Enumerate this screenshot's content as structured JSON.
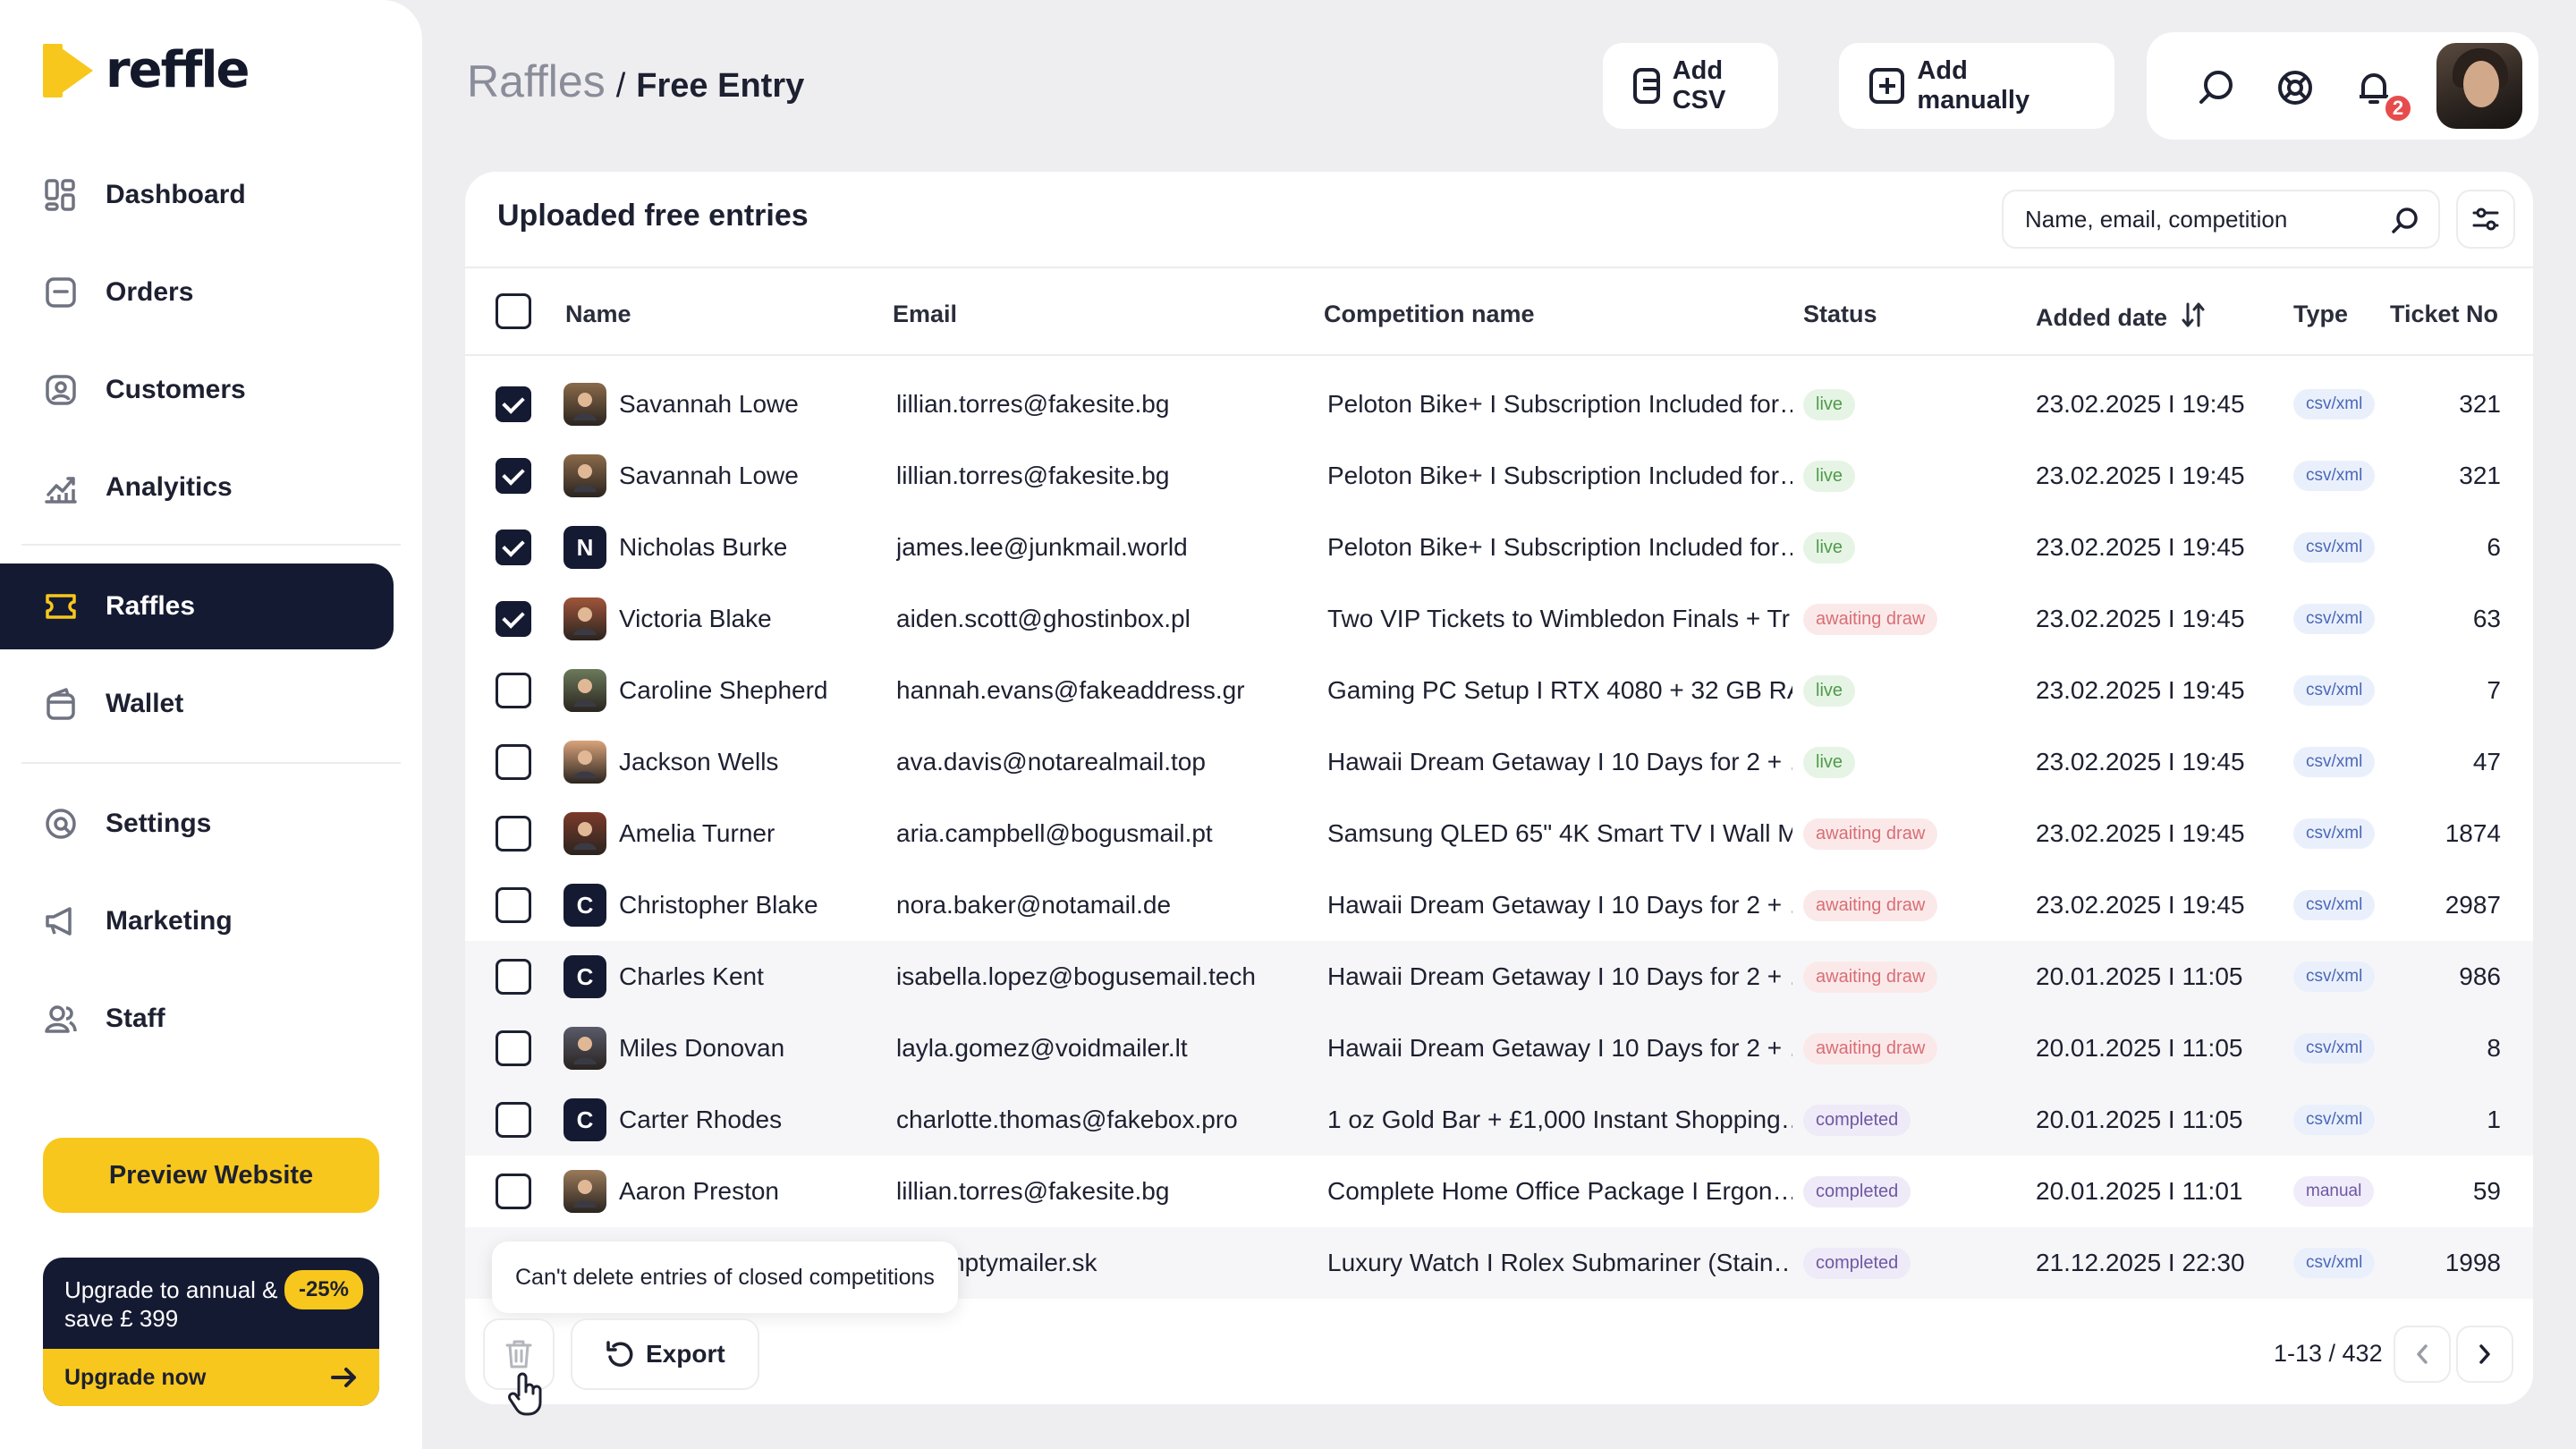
{
  "app": {
    "logo_text": "reffle",
    "brand_color": "#f7c71d",
    "nav_dark": "#151a33"
  },
  "sidebar": {
    "items": [
      {
        "label": "Dashboard",
        "icon": "dashboard-icon"
      },
      {
        "label": "Orders",
        "icon": "orders-icon"
      },
      {
        "label": "Customers",
        "icon": "customers-icon"
      },
      {
        "label": "Analyitics",
        "icon": "analytics-icon"
      },
      {
        "label": "Raffles",
        "icon": "raffles-icon",
        "active": true
      },
      {
        "label": "Wallet",
        "icon": "wallet-icon"
      },
      {
        "label": "Settings",
        "icon": "settings-icon"
      },
      {
        "label": "Marketing",
        "icon": "megaphone-icon"
      },
      {
        "label": "Staff",
        "icon": "staff-icon"
      }
    ],
    "preview_label": "Preview Website",
    "upgrade": {
      "text": "Upgrade to annual & save £ 399",
      "badge": "-25%",
      "cta": "Upgrade now"
    }
  },
  "header": {
    "breadcrumb_root": "Raffles",
    "breadcrumb_sep": "/",
    "breadcrumb_page": "Free Entry",
    "add_csv_label": "Add CSV",
    "add_manual_label": "Add manually",
    "notification_count": "2"
  },
  "card": {
    "title": "Uploaded free entries",
    "search_placeholder": "Name, email, competition",
    "columns": [
      "Name",
      "Email",
      "Competition name",
      "Status",
      "Added date",
      "Type",
      "Ticket No"
    ],
    "rows": [
      {
        "checked": true,
        "name": "Savannah Lowe",
        "avatar": "photo",
        "avatar_color": "#8a6a4a",
        "email": "lillian.torres@fakesite.bg",
        "competition": "Peloton Bike+ I Subscription Included for…",
        "status": "live",
        "date": "23.02.2025 I 19:45",
        "type": "csv/xml",
        "ticket": "321"
      },
      {
        "checked": true,
        "name": "Savannah Lowe",
        "avatar": "photo",
        "avatar_color": "#8a6a4a",
        "email": "lillian.torres@fakesite.bg",
        "competition": "Peloton Bike+ I Subscription Included for…",
        "status": "live",
        "date": "23.02.2025 I 19:45",
        "type": "csv/xml",
        "ticket": "321"
      },
      {
        "checked": true,
        "name": "Nicholas Burke",
        "avatar": "N",
        "email": "james.lee@junkmail.world",
        "competition": "Peloton Bike+ I Subscription Included for…",
        "status": "live",
        "date": "23.02.2025 I 19:45",
        "type": "csv/xml",
        "ticket": "6"
      },
      {
        "checked": true,
        "name": "Victoria Blake",
        "avatar": "photo",
        "avatar_color": "#a0553a",
        "email": "aiden.scott@ghostinbox.pl",
        "competition": "Two VIP Tickets to Wimbledon Finals + Tr…",
        "status": "awaiting draw",
        "date": "23.02.2025 I 19:45",
        "type": "csv/xml",
        "ticket": "63"
      },
      {
        "checked": false,
        "name": "Caroline Shepherd",
        "avatar": "photo",
        "avatar_color": "#6b7a5a",
        "email": "hannah.evans@fakeaddress.gr",
        "competition": "Gaming PC Setup I RTX 4080 + 32 GB RA…",
        "status": "live",
        "date": "23.02.2025 I 19:45",
        "type": "csv/xml",
        "ticket": "7"
      },
      {
        "checked": false,
        "name": "Jackson Wells",
        "avatar": "photo",
        "avatar_color": "#d9a37a",
        "email": "ava.davis@notarealmail.top",
        "competition": "Hawaii Dream Getaway I 10 Days for 2 + …",
        "status": "live",
        "date": "23.02.2025 I 19:45",
        "type": "csv/xml",
        "ticket": "47"
      },
      {
        "checked": false,
        "name": "Amelia Turner",
        "avatar": "photo",
        "avatar_color": "#7a3a2a",
        "email": "aria.campbell@bogusmail.pt",
        "competition": "Samsung QLED 65\" 4K Smart TV I Wall M…",
        "status": "awaiting draw",
        "date": "23.02.2025 I 19:45",
        "type": "csv/xml",
        "ticket": "1874"
      },
      {
        "checked": false,
        "name": "Christopher Blake",
        "avatar": "C",
        "email": "nora.baker@notamail.de",
        "competition": "Hawaii Dream Getaway I 10 Days for 2 + …",
        "status": "awaiting draw",
        "date": "23.02.2025 I 19:45",
        "type": "csv/xml",
        "ticket": "2987"
      },
      {
        "checked": false,
        "name": "Charles Kent",
        "avatar": "C",
        "email": "isabella.lopez@bogusemail.tech",
        "competition": "Hawaii Dream Getaway I 10 Days for 2 + …",
        "status": "awaiting draw",
        "date": "20.01.2025 I 11:05",
        "type": "csv/xml",
        "ticket": "986"
      },
      {
        "checked": false,
        "name": "Miles Donovan",
        "avatar": "photo",
        "avatar_color": "#5a5a6a",
        "email": "layla.gomez@voidmailer.lt",
        "competition": "Hawaii Dream Getaway I 10 Days for 2 + …",
        "status": "awaiting draw",
        "date": "20.01.2025 I 11:05",
        "type": "csv/xml",
        "ticket": "8"
      },
      {
        "checked": false,
        "name": "Carter Rhodes",
        "avatar": "C",
        "email": "charlotte.thomas@fakebox.pro",
        "competition": "1 oz Gold Bar + £1,000 Instant Shopping…",
        "status": "completed",
        "date": "20.01.2025 I 11:05",
        "type": "csv/xml",
        "ticket": "1"
      },
      {
        "checked": false,
        "name": "Aaron Preston",
        "avatar": "photo",
        "avatar_color": "#9a7a5a",
        "email": "lillian.torres@fakesite.bg",
        "competition": "Complete Home Office Package I Ergon…",
        "status": "completed",
        "date": "20.01.2025 I 11:01",
        "type": "manual",
        "ticket": "59"
      },
      {
        "checked": false,
        "name": "",
        "avatar": "none",
        "email": "r@emptymailer.sk",
        "competition": "Luxury Watch I Rolex Submariner (Stain…",
        "status": "completed",
        "date": "21.12.2025 I 22:30",
        "type": "csv/xml",
        "ticket": "1998"
      }
    ],
    "tooltip": "Can't delete entries of closed competitions",
    "export_label": "Export",
    "pagination": "1-13 / 432"
  }
}
